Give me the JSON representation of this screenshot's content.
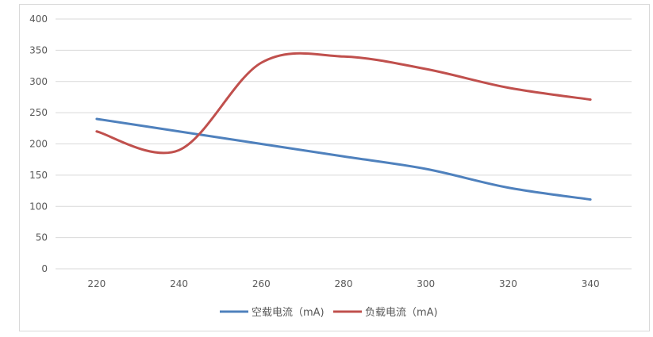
{
  "chart_data": {
    "type": "line",
    "title": "",
    "xlabel": "",
    "ylabel": "",
    "categories": [
      220,
      240,
      260,
      280,
      300,
      320,
      340
    ],
    "ylim": [
      0,
      400
    ],
    "yticks": [
      0,
      50,
      100,
      150,
      200,
      250,
      300,
      350,
      400
    ],
    "grid": true,
    "smooth": true,
    "legend_position": "bottom",
    "series": [
      {
        "name": "空载电流（mA)",
        "color": "#4f81bd",
        "values": [
          240,
          220,
          200,
          180,
          160,
          130,
          111
        ]
      },
      {
        "name": "负载电流（mA)",
        "color": "#c0504d",
        "values": [
          220,
          190,
          330,
          340,
          320,
          290,
          271
        ]
      }
    ]
  }
}
